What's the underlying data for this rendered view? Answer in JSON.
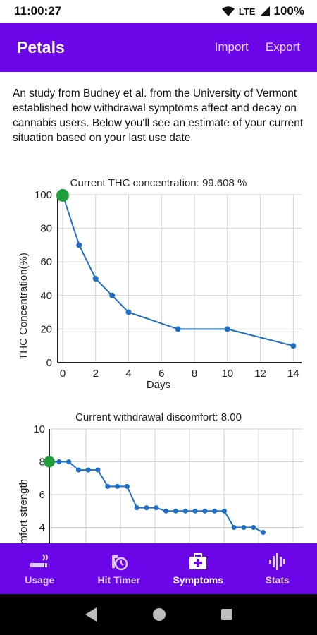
{
  "status": {
    "time": "11:00:27",
    "network": "LTE",
    "battery": "100%"
  },
  "app_bar": {
    "title": "Petals",
    "import_label": "Import",
    "export_label": "Export"
  },
  "intro": "An study from Budney et al. from the University of Vermont established how withdrawal symptoms affect and decay on cannabis users. Below you'll see an estimate of your current situation based on your last use date",
  "nav": [
    {
      "label": "Usage",
      "icon": "smoking-icon"
    },
    {
      "label": "Hit Timer",
      "icon": "timer-icon"
    },
    {
      "label": "Symptoms",
      "icon": "medkit-icon",
      "active": true
    },
    {
      "label": "Stats",
      "icon": "waveform-icon"
    }
  ],
  "colors": {
    "primary": "#6b06e8",
    "line": "#1f6fc6",
    "current_point": "#1e9e3a"
  },
  "chart_data": [
    {
      "type": "line",
      "title": "Current THC concentration: 99.608 %",
      "xlabel": "Days",
      "ylabel": "THC Concentration(%)",
      "xlim": [
        -0.3,
        14.5
      ],
      "ylim": [
        0,
        100
      ],
      "x_ticks": [
        "0",
        "2",
        "4",
        "6",
        "8",
        "10",
        "12",
        "14"
      ],
      "y_ticks": [
        "0",
        "20",
        "40",
        "60",
        "80",
        "100"
      ],
      "series": [
        {
          "x": [
            0,
            1,
            2,
            3,
            4,
            7,
            10,
            14
          ],
          "y": [
            100,
            70,
            50,
            40,
            30,
            20,
            20,
            10
          ]
        }
      ],
      "current_point": {
        "x": 0,
        "y": 99.608
      }
    },
    {
      "type": "line",
      "title": "Current withdrawal discomfort: 8.00",
      "ylabel": "Discomfort strength",
      "ylim": [
        4,
        10
      ],
      "y_ticks": [
        "4",
        "6",
        "8",
        "10"
      ],
      "series": [
        {
          "x": [
            0,
            1,
            2,
            3,
            4,
            5,
            6,
            7,
            8,
            9,
            10,
            11,
            12,
            13,
            14,
            15,
            16,
            17,
            18,
            19,
            20,
            21,
            22
          ],
          "y": [
            8,
            8,
            8,
            7.5,
            7.5,
            7.5,
            6.5,
            6.5,
            6.5,
            5.2,
            5.2,
            5.2,
            5,
            5,
            5,
            5,
            5,
            5,
            5,
            4,
            4,
            4,
            3.7
          ]
        }
      ],
      "current_point": {
        "x": 0,
        "y": 8
      }
    }
  ]
}
